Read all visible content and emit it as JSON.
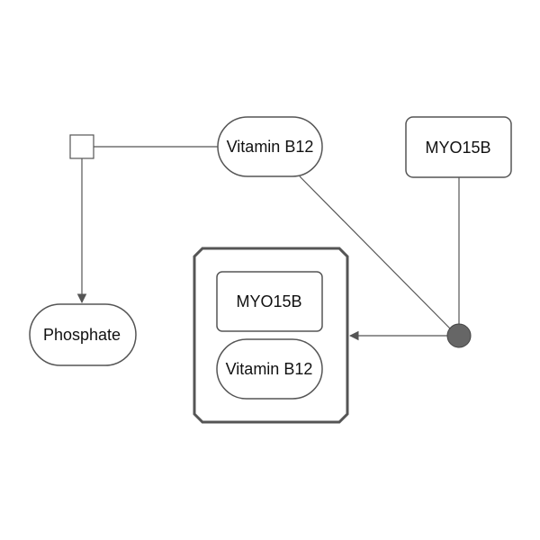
{
  "nodes": {
    "vitamin_top": {
      "label": "Vitamin B12"
    },
    "myo_top": {
      "label": "MYO15B"
    },
    "phosphate": {
      "label": "Phosphate"
    },
    "complex": {
      "members": {
        "myo": {
          "label": "MYO15B"
        },
        "vitamin": {
          "label": "Vitamin B12"
        }
      }
    }
  },
  "colors": {
    "stroke": "#555555",
    "complex_stroke": "#555555",
    "association_fill": "#666666",
    "text": "#111111"
  }
}
